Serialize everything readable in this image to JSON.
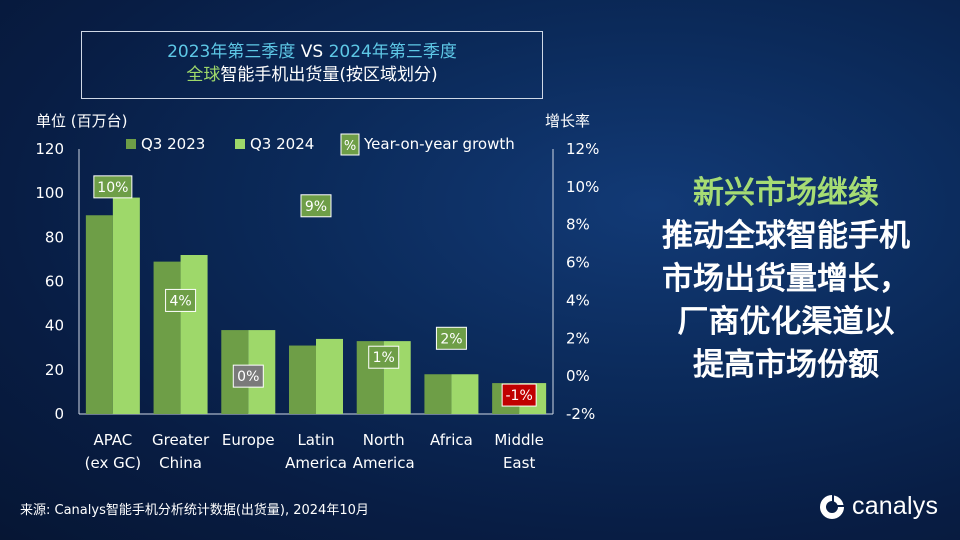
{
  "title": {
    "line1_part1": "2023年第三季度",
    "line1_vs": "VS",
    "line1_part2": "2024年第三季度",
    "line2_part1": "全球",
    "line2_part2": "智能手机出货量(按区域划分)"
  },
  "chart_data": {
    "type": "bar",
    "ylabel": "单位 (百万台)",
    "y2label": "增长率",
    "ylim": [
      0,
      120
    ],
    "yticks": [
      "0",
      "20",
      "40",
      "60",
      "80",
      "100",
      "120"
    ],
    "y2lim": [
      -2,
      12
    ],
    "y2ticks": [
      "-2%",
      "0%",
      "2%",
      "4%",
      "6%",
      "8%",
      "10%",
      "12%"
    ],
    "categories": [
      [
        "APAC",
        "(ex GC)"
      ],
      [
        "Greater",
        "China"
      ],
      [
        "Europe"
      ],
      [
        "Latin",
        "America"
      ],
      [
        "North",
        "America"
      ],
      [
        "Africa"
      ],
      [
        "Middle",
        "East"
      ]
    ],
    "series": [
      {
        "name": "Q3 2023",
        "color": "#6e9e47",
        "values": [
          90,
          69,
          38,
          31,
          33,
          18,
          14
        ]
      },
      {
        "name": "Q3 2024",
        "color": "#9ed86a",
        "values": [
          98,
          72,
          38,
          34,
          33,
          18,
          14
        ]
      }
    ],
    "growth": {
      "name": "Year-on-year growth",
      "symbol": "%",
      "values": [
        10,
        4,
        0,
        9,
        1,
        2,
        -1
      ],
      "labels": [
        "10%",
        "4%",
        "0%",
        "9%",
        "1%",
        "2%",
        "-1%"
      ],
      "colors": {
        "positive": "#6e9e47",
        "zero": "#7a7a7a",
        "negative": "#c00000"
      }
    }
  },
  "right_panel": {
    "lines": [
      "新兴市场继续",
      "推动全球智能手机",
      "市场出货量增长，",
      "厂商优化渠道以",
      "提高市场份额"
    ]
  },
  "source": "来源: Canalys智能手机分析统计数据(出货量), 2024年10月",
  "logo": {
    "text": "canalys"
  }
}
